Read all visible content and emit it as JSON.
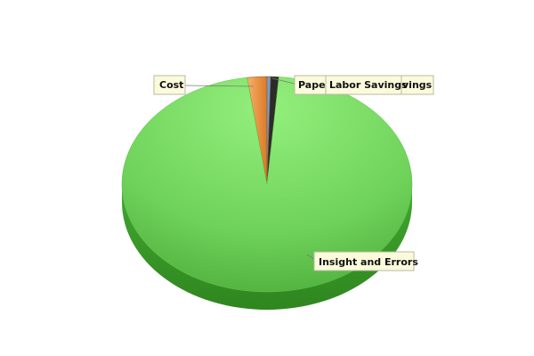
{
  "chart_data": {
    "type": "pie",
    "title": "",
    "slices": [
      {
        "label": "Insight and Errors",
        "value": 96.5,
        "color": "#6ed35a"
      },
      {
        "label": "Cost",
        "value": 2.2,
        "color": "#f0933e"
      },
      {
        "label": "Paper",
        "value": 0.4,
        "color": "#6f9fd8"
      },
      {
        "label": "Labor Savings",
        "value": 0.9,
        "color": "#2b2b2b"
      }
    ],
    "style": "3d",
    "legend": "none"
  },
  "overlapping_label_text": "vings"
}
